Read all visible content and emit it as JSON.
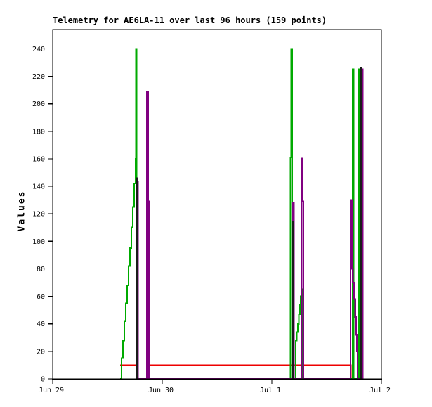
{
  "window": {
    "background_color": "#ffffff"
  },
  "chart": {
    "title": "Telemetry for AE6LA-11 over last 96 hours (159 points)",
    "ylabel": "Values"
  },
  "chart_data": {
    "type": "line",
    "title": "Telemetry for AE6LA-11 over last 96 hours (159 points)",
    "xlabel": "",
    "ylabel": "Values",
    "grid": false,
    "legend": "none",
    "ylim": [
      0,
      254
    ],
    "yticks": [
      0,
      20,
      40,
      60,
      80,
      100,
      120,
      140,
      160,
      180,
      200,
      220,
      240
    ],
    "x_unit": "days since Jun 29",
    "xlim_days": [
      0,
      3
    ],
    "xticks": [
      {
        "pos": 0,
        "label": "Jun 29"
      },
      {
        "pos": 1,
        "label": "Jun 30"
      },
      {
        "pos": 2,
        "label": "Jul 1"
      },
      {
        "pos": 3,
        "label": "Jul 2"
      }
    ],
    "axis_color": "#000000",
    "interpolation": "steps",
    "series": [
      {
        "name": "red-channel",
        "color": "#ee0000",
        "stroke_width": 1.8,
        "points": [
          [
            0.615,
            10
          ],
          [
            0.763,
            0
          ],
          [
            0.872,
            10
          ],
          [
            2.718,
            10
          ],
          [
            2.723,
            0
          ]
        ]
      },
      {
        "name": "green-channel",
        "color": "#00aa00",
        "stroke_width": 2.2,
        "points": [
          [
            0.615,
            0
          ],
          [
            0.628,
            15
          ],
          [
            0.641,
            28
          ],
          [
            0.654,
            42
          ],
          [
            0.667,
            55
          ],
          [
            0.679,
            68
          ],
          [
            0.692,
            82
          ],
          [
            0.705,
            95
          ],
          [
            0.718,
            110
          ],
          [
            0.731,
            125
          ],
          [
            0.744,
            142
          ],
          [
            0.756,
            160
          ],
          [
            0.76,
            240
          ],
          [
            0.766,
            0
          ],
          [
            2.17,
            161
          ],
          [
            2.176,
            240
          ],
          [
            2.186,
            0
          ],
          [
            2.218,
            28
          ],
          [
            2.228,
            34
          ],
          [
            2.237,
            40
          ],
          [
            2.247,
            47
          ],
          [
            2.256,
            54
          ],
          [
            2.264,
            60
          ],
          [
            2.269,
            65
          ],
          [
            2.272,
            0
          ],
          [
            2.737,
            225
          ],
          [
            2.747,
            0
          ],
          [
            2.795,
            225
          ],
          [
            2.808,
            225
          ],
          [
            2.81,
            66
          ],
          [
            2.816,
            50
          ],
          [
            2.821,
            35
          ],
          [
            2.826,
            19
          ],
          [
            2.828,
            0
          ]
        ]
      },
      {
        "name": "purple-channel",
        "color": "#800080",
        "stroke_width": 2.4,
        "points": [
          [
            0.763,
            0
          ],
          [
            0.769,
            143
          ],
          [
            0.779,
            0
          ],
          [
            0.859,
            209
          ],
          [
            0.869,
            129
          ],
          [
            0.878,
            0
          ],
          [
            2.192,
            128
          ],
          [
            2.202,
            0
          ],
          [
            2.269,
            160
          ],
          [
            2.279,
            129
          ],
          [
            2.288,
            0
          ],
          [
            2.718,
            130
          ],
          [
            2.731,
            80
          ],
          [
            2.74,
            70
          ],
          [
            2.75,
            58
          ],
          [
            2.76,
            45
          ],
          [
            2.769,
            32
          ],
          [
            2.777,
            20
          ],
          [
            2.782,
            0
          ],
          [
            2.817,
            225
          ],
          [
            2.83,
            0
          ]
        ]
      },
      {
        "name": "black-channel",
        "color": "#1a1a1a",
        "stroke_width": 1.4,
        "points": [
          [
            0.762,
            0
          ],
          [
            0.764,
            146
          ],
          [
            0.771,
            0
          ],
          [
            2.187,
            114
          ],
          [
            2.194,
            0
          ],
          [
            2.812,
            226
          ],
          [
            2.821,
            0
          ]
        ]
      }
    ]
  }
}
